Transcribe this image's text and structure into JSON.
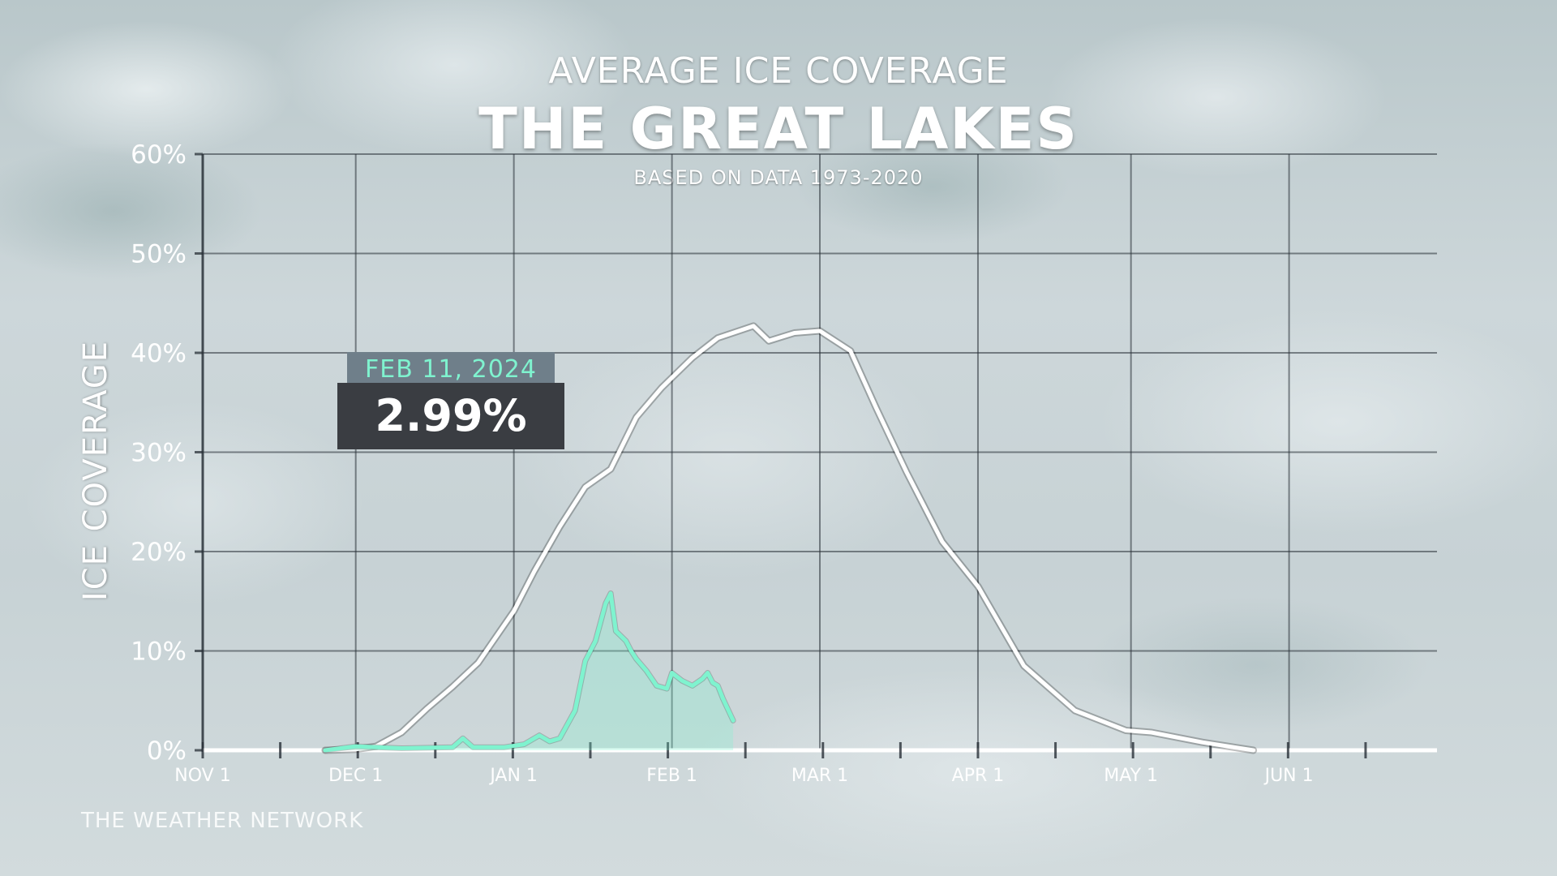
{
  "chart_data": {
    "type": "line",
    "supertitle": "AVERAGE ICE COVERAGE",
    "title": "THE GREAT LAKES",
    "subtitle": "BASED ON DATA 1973-2020",
    "ylabel": "ICE COVERAGE",
    "xlabel": "",
    "ylim": [
      0,
      60
    ],
    "y_ticks": [
      "0%",
      "10%",
      "20%",
      "30%",
      "40%",
      "50%",
      "60%"
    ],
    "y_tick_values": [
      0,
      10,
      20,
      30,
      40,
      50,
      60
    ],
    "xlim": [
      "Nov 1",
      "Jun 30"
    ],
    "x_ticks": [
      "NOV 1",
      "DEC 1",
      "JAN 1",
      "FEB 1",
      "MAR 1",
      "APR 1",
      "MAY 1",
      "JUN 1"
    ],
    "x_tick_dates": [
      "Nov 1",
      "Dec 1",
      "Jan 1",
      "Feb 1",
      "Mar 1",
      "Apr 1",
      "May 1",
      "Jun 1"
    ],
    "grid": true,
    "series": [
      {
        "color": "#ffffff",
        "points": [
          [
            "Nov 25",
            0
          ],
          [
            "Dec 1",
            0.1
          ],
          [
            "Dec 5",
            0.4
          ],
          [
            "Dec 10",
            1.8
          ],
          [
            "Dec 15",
            4.2
          ],
          [
            "Dec 20",
            6.4
          ],
          [
            "Dec 25",
            8.8
          ],
          [
            "Jan 1",
            14.0
          ],
          [
            "Jan 5",
            18.0
          ],
          [
            "Jan 10",
            22.5
          ],
          [
            "Jan 15",
            26.5
          ],
          [
            "Jan 20",
            28.3
          ],
          [
            "Jan 25",
            33.5
          ],
          [
            "Jan 30",
            36.5
          ],
          [
            "Feb 5",
            39.5
          ],
          [
            "Feb 10",
            41.5
          ],
          [
            "Feb 17",
            42.7
          ],
          [
            "Feb 20",
            41.2
          ],
          [
            "Feb 25",
            42.0
          ],
          [
            "Mar 1",
            42.2
          ],
          [
            "Mar 7",
            40.2
          ],
          [
            "Mar 12",
            34.5
          ],
          [
            "Mar 18",
            28.0
          ],
          [
            "Mar 25",
            21.0
          ],
          [
            "Apr 1",
            16.5
          ],
          [
            "Apr 10",
            8.5
          ],
          [
            "Apr 20",
            4.0
          ],
          [
            "Apr 30",
            2.0
          ],
          [
            "May 5",
            1.8
          ],
          [
            "May 15",
            0.8
          ],
          [
            "May 25",
            0
          ]
        ]
      },
      {
        "color": "#7ff3cf",
        "points": [
          [
            "Nov 25",
            0
          ],
          [
            "Dec 1",
            0.4
          ],
          [
            "Dec 10",
            0.2
          ],
          [
            "Dec 20",
            0.3
          ],
          [
            "Dec 22",
            1.2
          ],
          [
            "Dec 24",
            0.3
          ],
          [
            "Dec 30",
            0.3
          ],
          [
            "Jan 3",
            0.6
          ],
          [
            "Jan 6",
            1.5
          ],
          [
            "Jan 8",
            0.9
          ],
          [
            "Jan 10",
            1.2
          ],
          [
            "Jan 13",
            4.0
          ],
          [
            "Jan 15",
            9.0
          ],
          [
            "Jan 17",
            11.0
          ],
          [
            "Jan 19",
            14.8
          ],
          [
            "Jan 20",
            15.8
          ],
          [
            "Jan 21",
            12.0
          ],
          [
            "Jan 23",
            11.0
          ],
          [
            "Jan 24",
            10.0
          ],
          [
            "Jan 25",
            9.2
          ],
          [
            "Jan 27",
            8.0
          ],
          [
            "Jan 29",
            6.5
          ],
          [
            "Jan 31",
            6.2
          ],
          [
            "Feb 1",
            7.8
          ],
          [
            "Feb 3",
            7.0
          ],
          [
            "Feb 5",
            6.5
          ],
          [
            "Feb 7",
            7.2
          ],
          [
            "Feb 8",
            7.8
          ],
          [
            "Feb 9",
            6.8
          ],
          [
            "Feb 10",
            6.5
          ],
          [
            "Feb 11",
            5.2
          ],
          [
            "Feb 13",
            3.0
          ]
        ]
      }
    ],
    "callout": {
      "date": "FEB 11, 2024",
      "value": "2.99%"
    },
    "source": "THE WEATHER NETWORK"
  }
}
